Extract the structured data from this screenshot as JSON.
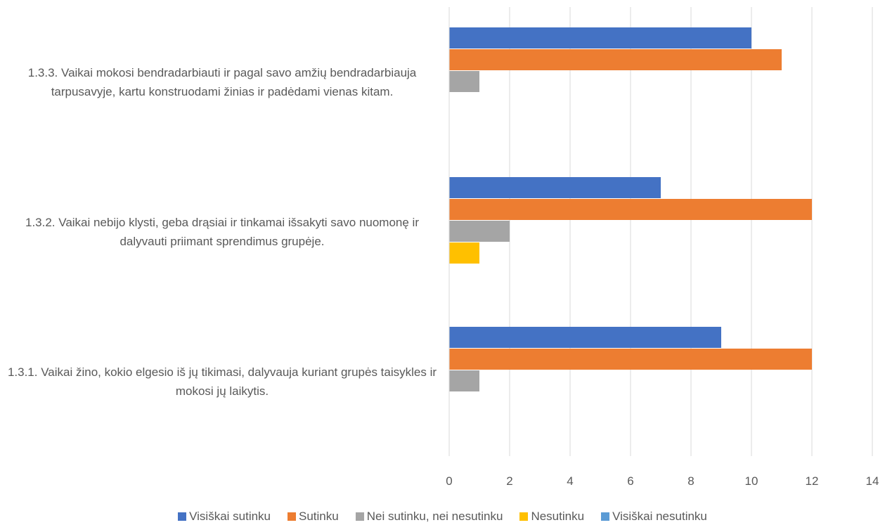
{
  "chart_data": {
    "type": "bar",
    "orientation": "horizontal",
    "categories": [
      "1.3.1. Vaikai žino, kokio elgesio iš jų tikimasi, dalyvauja kuriant grupės taisykles ir mokosi jų laikytis.",
      "1.3.2. Vaikai nebijo klysti, geba drąsiai ir tinkamai išsakyti savo nuomonę ir dalyvauti priimant sprendimus grupėje.",
      "1.3.3. Vaikai mokosi bendradarbiauti ir pagal savo amžių bendradarbiauja tarpusavyje, kartu konstruodami žinias ir padėdami vienas kitam."
    ],
    "series": [
      {
        "name": "Visiškai sutinku",
        "color": "#4472c4",
        "values": [
          9,
          7,
          10
        ]
      },
      {
        "name": "Sutinku",
        "color": "#ed7d31",
        "values": [
          12,
          12,
          11
        ]
      },
      {
        "name": "Nei sutinku, nei nesutinku",
        "color": "#a5a5a5",
        "values": [
          1,
          2,
          1
        ]
      },
      {
        "name": "Nesutinku",
        "color": "#ffc000",
        "values": [
          0,
          1,
          0
        ]
      },
      {
        "name": "Visiškai nesutinku",
        "color": "#5b9bd5",
        "values": [
          0,
          0,
          0
        ]
      }
    ],
    "xlim": [
      0,
      14
    ],
    "xticks": [
      0,
      2,
      4,
      6,
      8,
      10,
      12,
      14
    ],
    "grid": true,
    "legend": "bottom"
  }
}
